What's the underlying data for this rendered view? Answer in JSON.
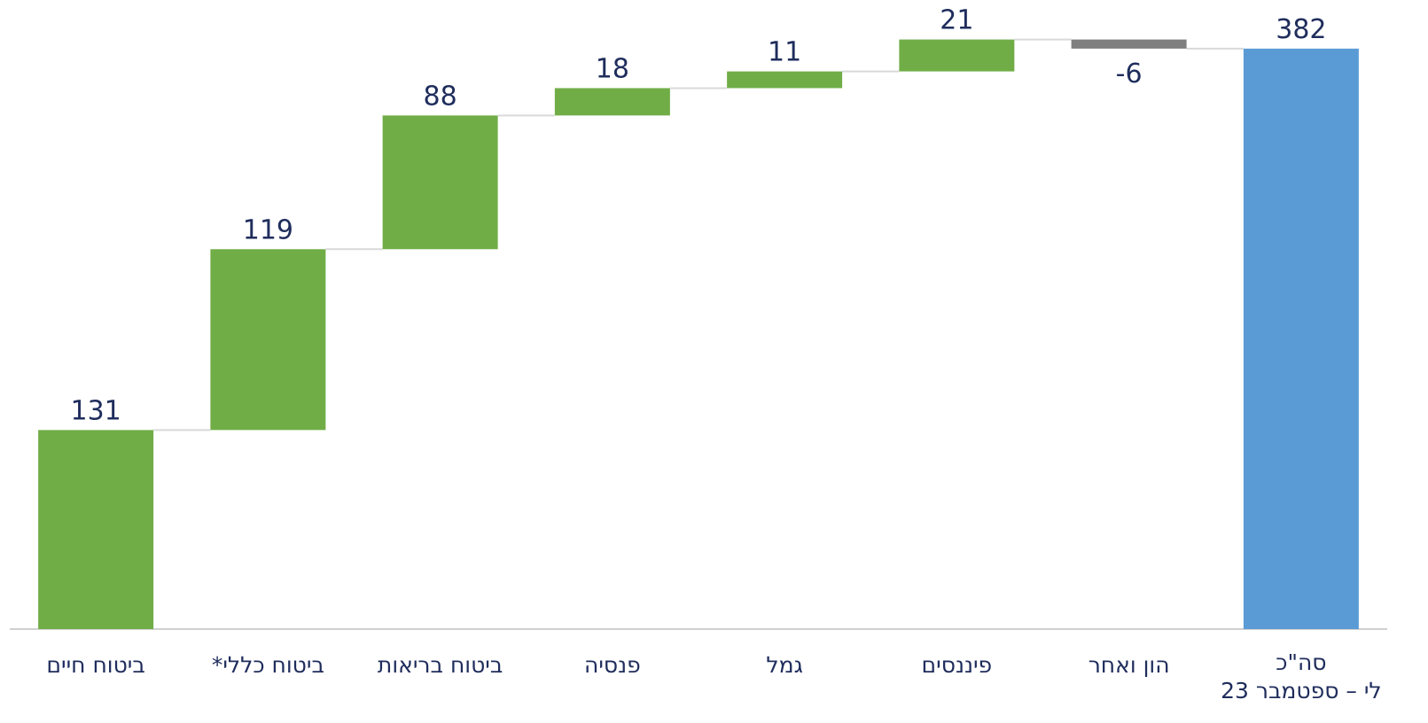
{
  "chart_data": {
    "type": "waterfall",
    "categories": [
      "ביטוח חיים",
      "ביטוח כללי*",
      "ביטוח בריאות",
      "פנסיה",
      "גמל",
      "פיננסים",
      "הון ואחר",
      [
        "סה\"כ",
        "לי – ספטמבר 23"
      ]
    ],
    "values": [
      131,
      119,
      88,
      18,
      11,
      21,
      -6,
      382
    ],
    "is_total": [
      false,
      false,
      false,
      false,
      false,
      false,
      false,
      true
    ],
    "colors": [
      "#70ad47",
      "#70ad47",
      "#70ad47",
      "#70ad47",
      "#70ad47",
      "#70ad47",
      "#7f7f7f",
      "#5b9bd5"
    ],
    "ylim": [
      0,
      400
    ]
  }
}
